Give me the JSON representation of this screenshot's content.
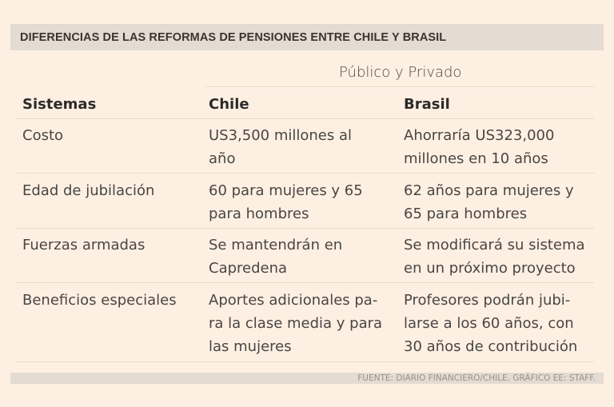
{
  "title": "DIFERENCIAS DE LAS REFORMAS DE PENSIONES ENTRE CHILE Y BRASIL",
  "subheader": "Público y Privado",
  "columns": [
    "Sistemas",
    "Chile",
    "Brasil"
  ],
  "rows": [
    {
      "label": [
        "Costo"
      ],
      "chile": [
        "US3,500 millones al",
        "año"
      ],
      "brasil": [
        "Ahorraría US323,000",
        "millones en 10 años"
      ]
    },
    {
      "label": [
        "Edad de jubilación"
      ],
      "chile": [
        "60 para mujeres y 65",
        "para hombres"
      ],
      "brasil": [
        "62 años para mujeres y",
        "65 para hombres"
      ]
    },
    {
      "label": [
        "Fuerzas armadas"
      ],
      "chile": [
        "Se mantendrán en",
        "Capredena"
      ],
      "brasil": [
        "Se modificará su sistema",
        "en un próximo proyecto"
      ]
    },
    {
      "label": [
        "Beneficios especiales"
      ],
      "chile": [
        "Aportes adicionales pa-",
        "ra la clase media y para",
        "las mujeres"
      ],
      "brasil": [
        "Profesores podrán jubi-",
        "larse a los 60 años, con",
        "30 años de contribución"
      ]
    }
  ],
  "footer": "FUENTE: DIARIO FINANCIERO/CHILE. GRÁFICO EE: STAFF."
}
